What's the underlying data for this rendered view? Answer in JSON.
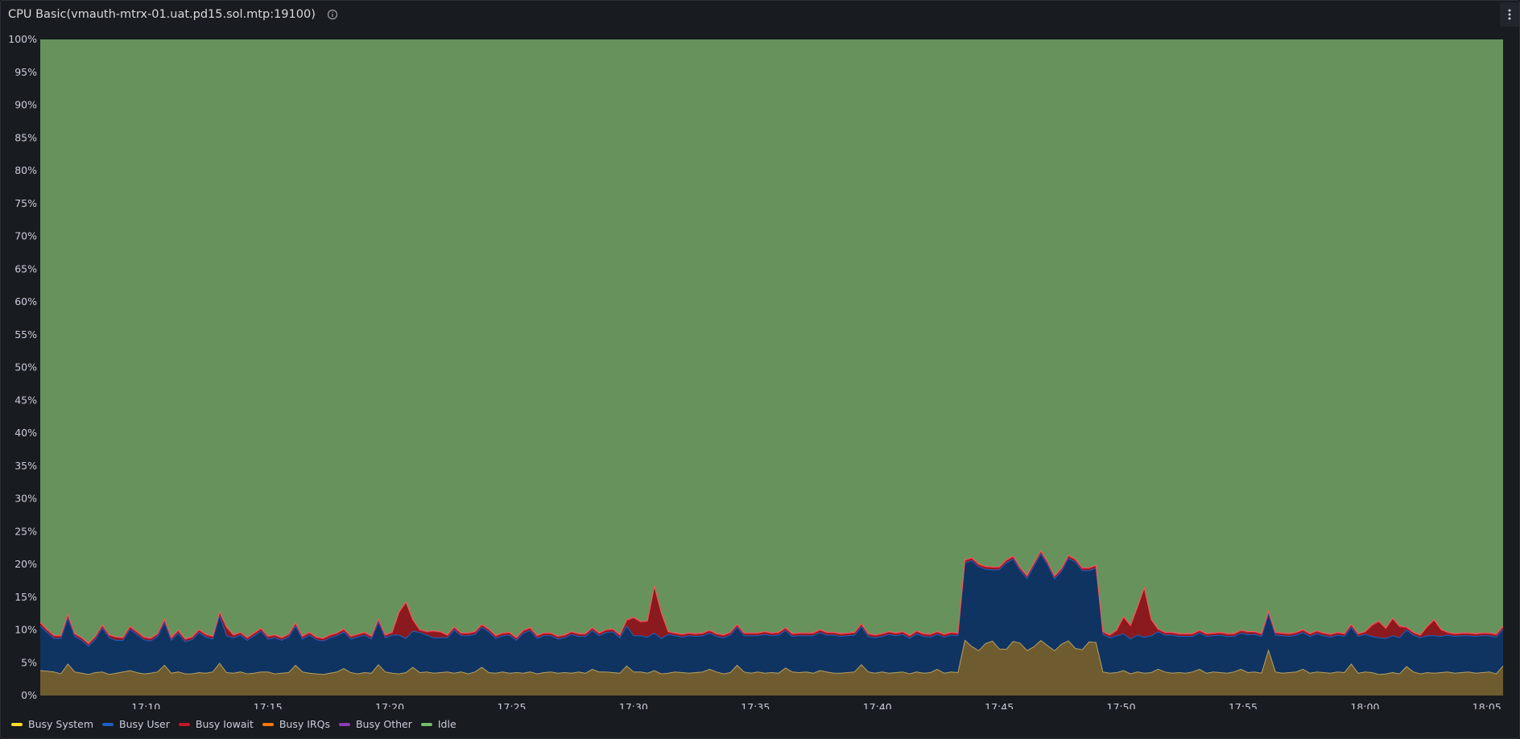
{
  "panel": {
    "title": "CPU Basic(vmauth-mtrx-01.uat.pd15.sol.mtp:19100)",
    "info_icon": "info-circle-icon",
    "menu_icon": "vertical-ellipsis-icon"
  },
  "chart_data": {
    "type": "area",
    "stacked": true,
    "ylim": [
      0,
      100
    ],
    "y_unit": "%",
    "y_ticks": [
      "0%",
      "5%",
      "10%",
      "15%",
      "20%",
      "25%",
      "30%",
      "35%",
      "40%",
      "45%",
      "50%",
      "55%",
      "60%",
      "65%",
      "70%",
      "75%",
      "80%",
      "85%",
      "90%",
      "95%",
      "100%"
    ],
    "x_ticks": [
      "17:10",
      "17:15",
      "17:20",
      "17:25",
      "17:30",
      "17:35",
      "17:40",
      "17:45",
      "17:50",
      "17:55",
      "18:00",
      "18:05"
    ],
    "x_range": [
      "17:05:40",
      "18:05:40"
    ],
    "grid": false,
    "legend_position": "bottom-left",
    "sample_interval_minutes": 0.5,
    "series": [
      {
        "name": "Busy System",
        "color": "#fade2a",
        "fill": "#6e5b2f",
        "values": [
          3.8,
          3.7,
          3.6,
          3.3,
          4.8,
          3.6,
          3.4,
          3.2,
          3.5,
          3.6,
          3.2,
          3.4,
          3.6,
          3.8,
          3.5,
          3.3,
          3.4,
          3.6,
          4.6,
          3.4,
          3.6,
          3.3,
          3.3,
          3.5,
          3.4,
          3.6,
          4.9,
          3.5,
          3.4,
          3.6,
          3.3,
          3.4,
          3.6,
          3.6,
          3.3,
          3.4,
          3.5,
          4.6,
          3.6,
          3.4,
          3.3,
          3.2,
          3.4,
          3.6,
          4.1,
          3.5,
          3.3,
          3.5,
          3.4,
          4.7,
          3.6,
          3.4,
          3.3,
          3.5,
          4.3,
          3.5,
          3.6,
          3.4,
          3.5,
          3.6,
          3.4,
          3.6,
          3.3,
          3.6,
          4.3,
          3.5,
          3.4,
          3.6,
          3.4,
          3.5,
          3.4,
          3.6,
          3.3,
          3.5,
          3.6,
          3.4,
          3.5,
          3.4,
          3.6,
          3.4,
          4.0,
          3.6,
          3.6,
          3.5,
          3.4,
          4.5,
          3.6,
          3.6,
          3.4,
          3.8,
          3.3,
          3.4,
          3.6,
          3.5,
          3.4,
          3.5,
          3.6,
          4.0,
          3.6,
          3.3,
          3.5,
          4.6,
          3.6,
          3.4,
          3.6,
          3.4,
          3.5,
          3.4,
          4.2,
          3.6,
          3.5,
          3.6,
          3.4,
          3.8,
          3.6,
          3.4,
          3.4,
          3.5,
          3.6,
          4.7,
          3.6,
          3.4,
          3.6,
          3.4,
          3.5,
          3.6,
          3.3,
          3.6,
          3.4,
          3.5,
          4.0,
          3.4,
          3.6,
          3.5,
          3.4,
          3.8,
          3.3,
          3.6,
          3.4,
          3.5,
          3.3,
          3.6,
          3.4,
          3.5,
          3.6,
          3.4,
          3.3,
          3.6,
          3.5,
          3.4,
          3.6,
          3.5,
          3.8,
          3.4,
          3.6,
          3.4,
          3.5,
          3.8,
          3.3,
          3.6,
          3.4,
          3.5,
          4.0,
          3.6,
          3.4,
          3.5,
          3.4,
          3.6,
          4.0,
          3.4,
          3.6,
          3.5,
          3.4,
          3.6,
          4.0,
          3.5,
          3.6,
          3.4,
          6.9,
          3.6,
          3.4,
          3.5,
          3.6,
          4.0,
          3.4,
          3.6,
          3.5,
          3.4,
          3.6,
          3.5,
          4.8,
          3.4,
          3.6,
          3.5,
          3.2,
          3.3,
          3.5,
          3.3,
          4.4,
          3.6,
          3.3,
          3.5,
          3.4,
          3.5,
          3.6,
          3.4,
          3.5,
          3.6,
          3.4,
          3.5,
          3.6,
          3.3,
          4.5
        ],
        "note_anchor": "17:43:30-17:49:00 elevated ~7-9"
      },
      {
        "name": "Busy User",
        "color": "#1f60c4",
        "fill": "#0f3461",
        "values": [
          6.8,
          5.9,
          5.1,
          5.4,
          7.0,
          5.4,
          5.0,
          4.3,
          5.1,
          6.7,
          5.6,
          5.0,
          4.8,
          6.3,
          5.8,
          5.2,
          4.9,
          5.4,
          6.5,
          5.0,
          5.9,
          4.9,
          5.2,
          6.1,
          5.5,
          5.0,
          7.3,
          5.6,
          5.4,
          5.6,
          5.1,
          5.7,
          6.2,
          5.0,
          5.5,
          5.0,
          5.4,
          6.0,
          5.0,
          5.8,
          5.2,
          5.1,
          5.4,
          5.5,
          5.6,
          5.1,
          5.6,
          5.7,
          5.2,
          6.5,
          5.2,
          5.8,
          5.9,
          5.2,
          5.5,
          6.1,
          5.6,
          5.4,
          5.3,
          5.2,
          6.6,
          5.5,
          5.8,
          5.7,
          6.1,
          6.2,
          5.3,
          5.5,
          5.8,
          4.9,
          6.1,
          6.3,
          5.4,
          5.6,
          5.5,
          5.2,
          5.3,
          5.9,
          5.4,
          5.6,
          5.9,
          5.5,
          6.0,
          6.2,
          5.4,
          6.1,
          5.5,
          5.5,
          5.5,
          5.7,
          5.4,
          5.9,
          5.5,
          5.4,
          5.7,
          5.5,
          5.5,
          5.5,
          5.4,
          5.5,
          5.7,
          5.8,
          5.5,
          5.7,
          5.5,
          5.9,
          5.6,
          5.8,
          5.7,
          5.4,
          5.6,
          5.5,
          5.7,
          5.8,
          5.6,
          5.8,
          5.6,
          5.6,
          5.6,
          5.8,
          5.4,
          5.4,
          5.4,
          5.9,
          5.6,
          5.7,
          5.4,
          5.8,
          5.6,
          5.4,
          5.3,
          5.5,
          5.6,
          5.6,
          5.6,
          5.5,
          5.7,
          5.4,
          5.5,
          5.7,
          5.6,
          5.4,
          5.7,
          5.7,
          5.5,
          5.6,
          5.7,
          5.6,
          5.3,
          5.5,
          5.6,
          5.6,
          5.6,
          5.6,
          5.7,
          5.4,
          5.6,
          5.6,
          5.3,
          5.6,
          5.5,
          5.6,
          5.7,
          5.6,
          5.8,
          5.5,
          5.6,
          5.4,
          5.5,
          5.6,
          5.5,
          5.7,
          5.6,
          5.4,
          5.5,
          5.8,
          5.7,
          5.6,
          5.5,
          5.6,
          5.7,
          5.5,
          5.6,
          5.6,
          5.6,
          5.8,
          5.6,
          5.5,
          5.6,
          5.5,
          5.6,
          5.6,
          5.7,
          5.5,
          5.6,
          5.4,
          5.6,
          5.5,
          5.6,
          5.6,
          5.5,
          5.6,
          5.7,
          5.5,
          5.6,
          5.6,
          5.6,
          5.5,
          5.6,
          5.6,
          5.5,
          5.6,
          5.6,
          5.6
        ]
      },
      {
        "name": "Busy Iowait",
        "color": "#c4162a",
        "fill": "#8a1a1e",
        "values": [
          0.4,
          0.3,
          0.3,
          0.3,
          0.4,
          0.3,
          0.3,
          0.3,
          0.3,
          0.3,
          0.3,
          0.4,
          0.3,
          0.3,
          0.3,
          0.3,
          0.3,
          0.3,
          0.4,
          0.3,
          0.3,
          0.3,
          0.3,
          0.3,
          0.3,
          0.3,
          0.4,
          1.2,
          0.3,
          0.3,
          0.3,
          0.3,
          0.3,
          0.3,
          0.3,
          0.3,
          0.3,
          0.3,
          0.3,
          0.3,
          0.3,
          0.3,
          0.3,
          0.3,
          0.3,
          0.3,
          0.3,
          0.3,
          0.3,
          0.3,
          0.3,
          0.3,
          0.3,
          0.3,
          0.3,
          0.3,
          0.3,
          0.3,
          0.3,
          0.3,
          0.3,
          0.3,
          0.3,
          0.3,
          0.3,
          0.3,
          0.3,
          0.3,
          0.3,
          0.3,
          0.3,
          0.3,
          0.3,
          0.3,
          0.3,
          0.3,
          0.3,
          0.3,
          0.3,
          0.3,
          0.3,
          0.3,
          0.3,
          0.3,
          0.3,
          0.3,
          0.3,
          0.3,
          0.3,
          0.3,
          0.3,
          0.3,
          0.3,
          0.3,
          0.3,
          0.3,
          0.3,
          0.3,
          0.3,
          0.3,
          0.3,
          0.3,
          0.3,
          0.3,
          0.3,
          0.3,
          0.3,
          0.3,
          0.3,
          0.3,
          0.3,
          0.3,
          0.3,
          0.3,
          0.3,
          0.3,
          0.3,
          0.3,
          0.3,
          0.3,
          0.3,
          0.3,
          0.3,
          0.3,
          0.3,
          0.3,
          0.3,
          0.3,
          0.3,
          0.3,
          0.3,
          0.3,
          0.3,
          0.3,
          0.3,
          0.3,
          0.3,
          0.3,
          0.3,
          0.3,
          0.3,
          0.3,
          0.3,
          0.3,
          0.3,
          0.3,
          0.3,
          0.3,
          0.3,
          0.3,
          0.3,
          0.3,
          0.3,
          0.3,
          0.3,
          0.3,
          0.3,
          0.3,
          0.3,
          0.3,
          0.3,
          0.3,
          0.3,
          0.3,
          0.3,
          0.3,
          0.3,
          0.3,
          0.3,
          0.3,
          0.3,
          0.3,
          0.3,
          0.3,
          0.3,
          0.3,
          0.3,
          0.3,
          0.3,
          0.3,
          0.3,
          0.3,
          0.3,
          0.3,
          0.3,
          0.3,
          0.3,
          0.3,
          0.3,
          0.3,
          0.3,
          0.3,
          0.3,
          0.3,
          0.3,
          0.3,
          0.3,
          0.3,
          0.3,
          0.3,
          0.3,
          0.3,
          0.3,
          0.3,
          0.3,
          0.3,
          0.3,
          0.3,
          0.3,
          0.3,
          0.3,
          0.3,
          0.3,
          0.3
        ]
      },
      {
        "name": "Busy IRQs",
        "color": "#ff780a",
        "fill": "#ff780a",
        "values": [
          0.05
        ]
      },
      {
        "name": "Busy Other",
        "color": "#8f3bb8",
        "fill": "#6a2a84",
        "values": [
          0.1
        ]
      },
      {
        "name": "Idle",
        "color": "#73bf69",
        "fill": "#67925b",
        "values": "remainder to 100%"
      }
    ]
  }
}
